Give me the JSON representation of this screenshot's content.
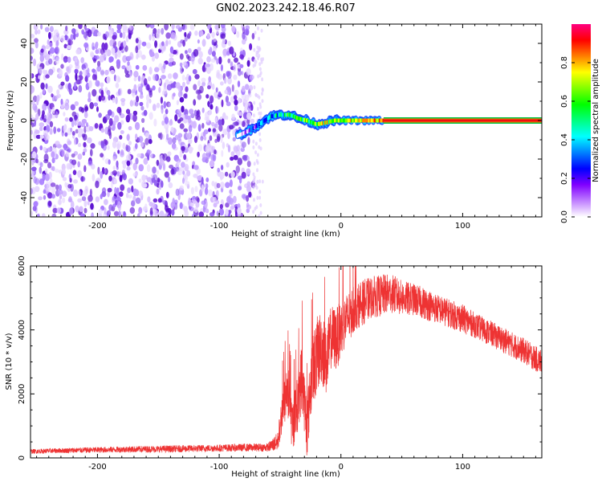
{
  "figure": {
    "title": "GN02.2023.242.18.46.R07"
  },
  "chart_data": [
    {
      "type": "heatmap",
      "title": "GN02.2023.242.18.46.R07",
      "xlabel": "Height of straight line (km)",
      "ylabel": "Frequency (Hz)",
      "xlim": [
        -255,
        165
      ],
      "ylim": [
        -50,
        50
      ],
      "xticks": [
        -200,
        -100,
        0,
        100
      ],
      "yticks": [
        -40,
        -20,
        0,
        20,
        40
      ],
      "colorbar": {
        "label": "Normalized spectral amplitude",
        "range": [
          0,
          1
        ],
        "ticks": [
          "0.0",
          "0.2",
          "0.4",
          "0.6",
          "0.8"
        ],
        "colormap": [
          "#ff0080",
          "#ff0000",
          "#ff8000",
          "#ffff00",
          "#80ff00",
          "#00ff00",
          "#00ff80",
          "#00ffff",
          "#0080ff",
          "#0000ff",
          "#8000ff",
          "#c080ff",
          "#ffffff"
        ]
      },
      "features": {
        "noise_region_x": [
          -255,
          -72
        ],
        "signal_track": [
          [
            -85,
            -8
          ],
          [
            -78,
            -6
          ],
          [
            -72,
            -4
          ],
          [
            -65,
            -1
          ],
          [
            -58,
            2
          ],
          [
            -50,
            3
          ],
          [
            -42,
            3
          ],
          [
            -35,
            1
          ],
          [
            -28,
            0
          ],
          [
            -20,
            -2
          ],
          [
            -12,
            -1
          ],
          [
            -5,
            0
          ],
          [
            5,
            0
          ],
          [
            15,
            0
          ],
          [
            25,
            0
          ],
          [
            35,
            0
          ],
          [
            60,
            0
          ],
          [
            90,
            0
          ],
          [
            120,
            0
          ],
          [
            165,
            0
          ]
        ],
        "track_amplitude": [
          0.2,
          0.3,
          0.4,
          0.5,
          0.55,
          0.6,
          0.7,
          0.75,
          0.8,
          0.8,
          0.85,
          0.85,
          0.9,
          0.9,
          0.95,
          0.95,
          0.95,
          0.95,
          0.95,
          0.95
        ]
      }
    },
    {
      "type": "line",
      "xlabel": "Height of straight line (km)",
      "ylabel": "SNR (10 * v/v)",
      "xlim": [
        -255,
        165
      ],
      "ylim": [
        0,
        6000
      ],
      "xticks": [
        -200,
        -100,
        0,
        100
      ],
      "yticks": [
        0,
        2000,
        4000,
        6000
      ],
      "series": [
        {
          "color": "#ee3333",
          "x": [
            -255,
            -230,
            -200,
            -170,
            -140,
            -110,
            -85,
            -60,
            -52,
            -48,
            -44,
            -40,
            -36,
            -32,
            -28,
            -24,
            -20,
            -16,
            -12,
            -8,
            -4,
            0,
            4,
            8,
            12,
            16,
            20,
            24,
            28,
            32,
            36,
            40,
            44,
            50,
            60,
            70,
            80,
            90,
            100,
            110,
            120,
            130,
            140,
            150,
            160,
            165
          ],
          "y": [
            200,
            230,
            250,
            270,
            280,
            300,
            320,
            330,
            500,
            1500,
            2200,
            1000,
            1600,
            2600,
            900,
            2600,
            3200,
            3500,
            3000,
            3800,
            3700,
            4000,
            4300,
            4500,
            4700,
            4800,
            4900,
            5000,
            5050,
            5050,
            5100,
            5150,
            5100,
            5000,
            4950,
            4800,
            4650,
            4500,
            4350,
            4150,
            3950,
            3750,
            3550,
            3350,
            3100,
            3000
          ],
          "noise": [
            70,
            80,
            90,
            100,
            110,
            110,
            120,
            130,
            300,
            700,
            900,
            800,
            900,
            1100,
            900,
            1100,
            1200,
            1200,
            1100,
            1000,
            1000,
            900,
            800,
            800,
            700,
            700,
            700,
            650,
            650,
            650,
            650,
            600,
            600,
            550,
            500,
            500,
            450,
            450,
            450,
            400,
            400,
            400,
            400,
            400,
            400,
            400
          ]
        }
      ]
    }
  ],
  "colors": {
    "signal_line": "#ee3333",
    "noise_dots": "#6a1fd9"
  }
}
